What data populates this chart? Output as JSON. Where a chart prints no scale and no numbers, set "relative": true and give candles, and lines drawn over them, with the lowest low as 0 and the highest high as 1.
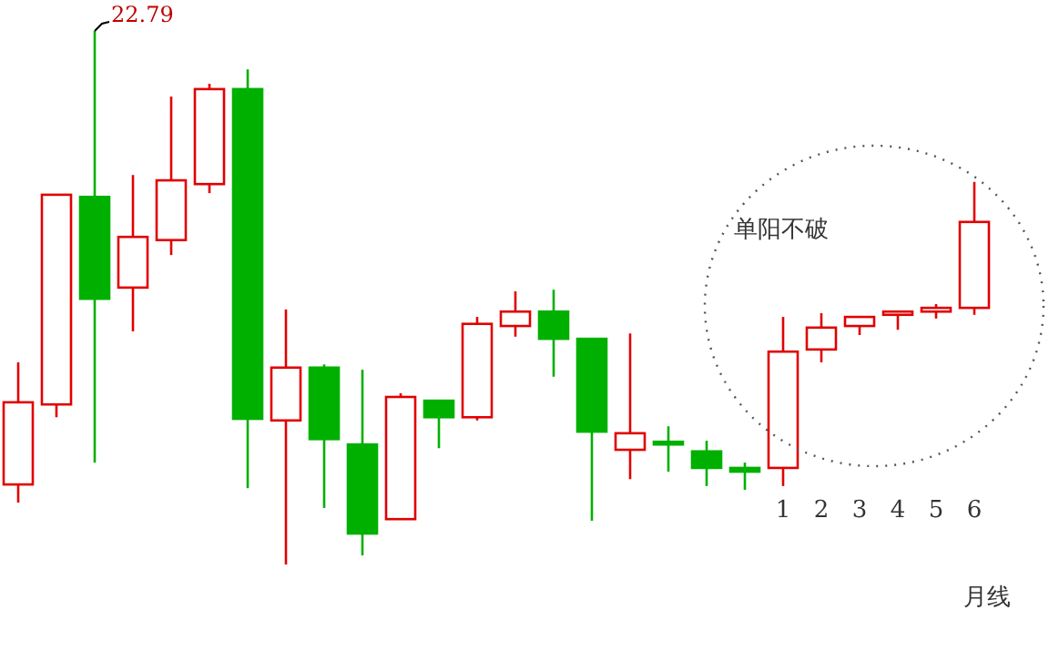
{
  "chart_data": {
    "type": "candlestick",
    "relative": true,
    "categories": [
      null,
      null,
      null,
      null,
      null,
      null,
      null,
      null,
      null,
      null,
      null,
      null,
      null,
      null,
      null,
      null,
      null,
      null,
      null,
      null,
      "1",
      "2",
      "3",
      "4",
      "5",
      "6"
    ],
    "ohlc": [
      [
        0.15,
        0.379,
        0.116,
        0.304
      ],
      [
        0.3,
        0.693,
        0.276,
        0.693
      ],
      [
        0.689,
        1,
        0.191,
        0.498
      ],
      [
        0.519,
        0.73,
        0.437,
        0.614
      ],
      [
        0.608,
        0.877,
        0.58,
        0.72
      ],
      [
        0.713,
        0.901,
        0.696,
        0.891
      ],
      [
        0.891,
        0.928,
        0.143,
        0.273
      ],
      [
        0.27,
        0.478,
        0,
        0.369
      ],
      [
        0.369,
        0.375,
        0.106,
        0.235
      ],
      [
        0.225,
        0.365,
        0.017,
        0.058
      ],
      [
        0.085,
        0.321,
        0.085,
        0.314
      ],
      [
        0.307,
        0.307,
        0.218,
        0.276
      ],
      [
        0.276,
        0.464,
        0.27,
        0.451
      ],
      [
        0.447,
        0.512,
        0.427,
        0.474
      ],
      [
        0.474,
        0.515,
        0.352,
        0.423
      ],
      [
        0.423,
        0.423,
        0.082,
        0.249
      ],
      [
        0.215,
        0.433,
        0.16,
        0.246
      ],
      [
        0.23,
        0.259,
        0.174,
        0.227
      ],
      [
        0.212,
        0.232,
        0.147,
        0.181
      ],
      [
        0.181,
        0.191,
        0.14,
        0.174
      ],
      [
        0.181,
        0.464,
        0.147,
        0.399
      ],
      [
        0.403,
        0.471,
        0.379,
        0.444
      ],
      [
        0.447,
        0.464,
        0.43,
        0.464
      ],
      [
        0.468,
        0.474,
        0.44,
        0.474
      ],
      [
        0.474,
        0.488,
        0.461,
        0.481
      ],
      [
        0.481,
        0.717,
        0.468,
        0.642
      ]
    ],
    "colors": [
      "#e00000",
      "#e00000",
      "#00b000",
      "#e00000",
      "#e00000",
      "#e00000",
      "#00b000",
      "#e00000",
      "#00b000",
      "#00b000",
      "#e00000",
      "#00b000",
      "#e00000",
      "#e00000",
      "#00b000",
      "#00b000",
      "#e00000",
      "#00b000",
      "#00b000",
      "#00b000",
      "#e00000",
      "#e00000",
      "#e00000",
      "#e00000",
      "#e00000",
      "#e00000"
    ],
    "annotations": [
      "22.79",
      "单阳不破",
      "月线"
    ]
  }
}
